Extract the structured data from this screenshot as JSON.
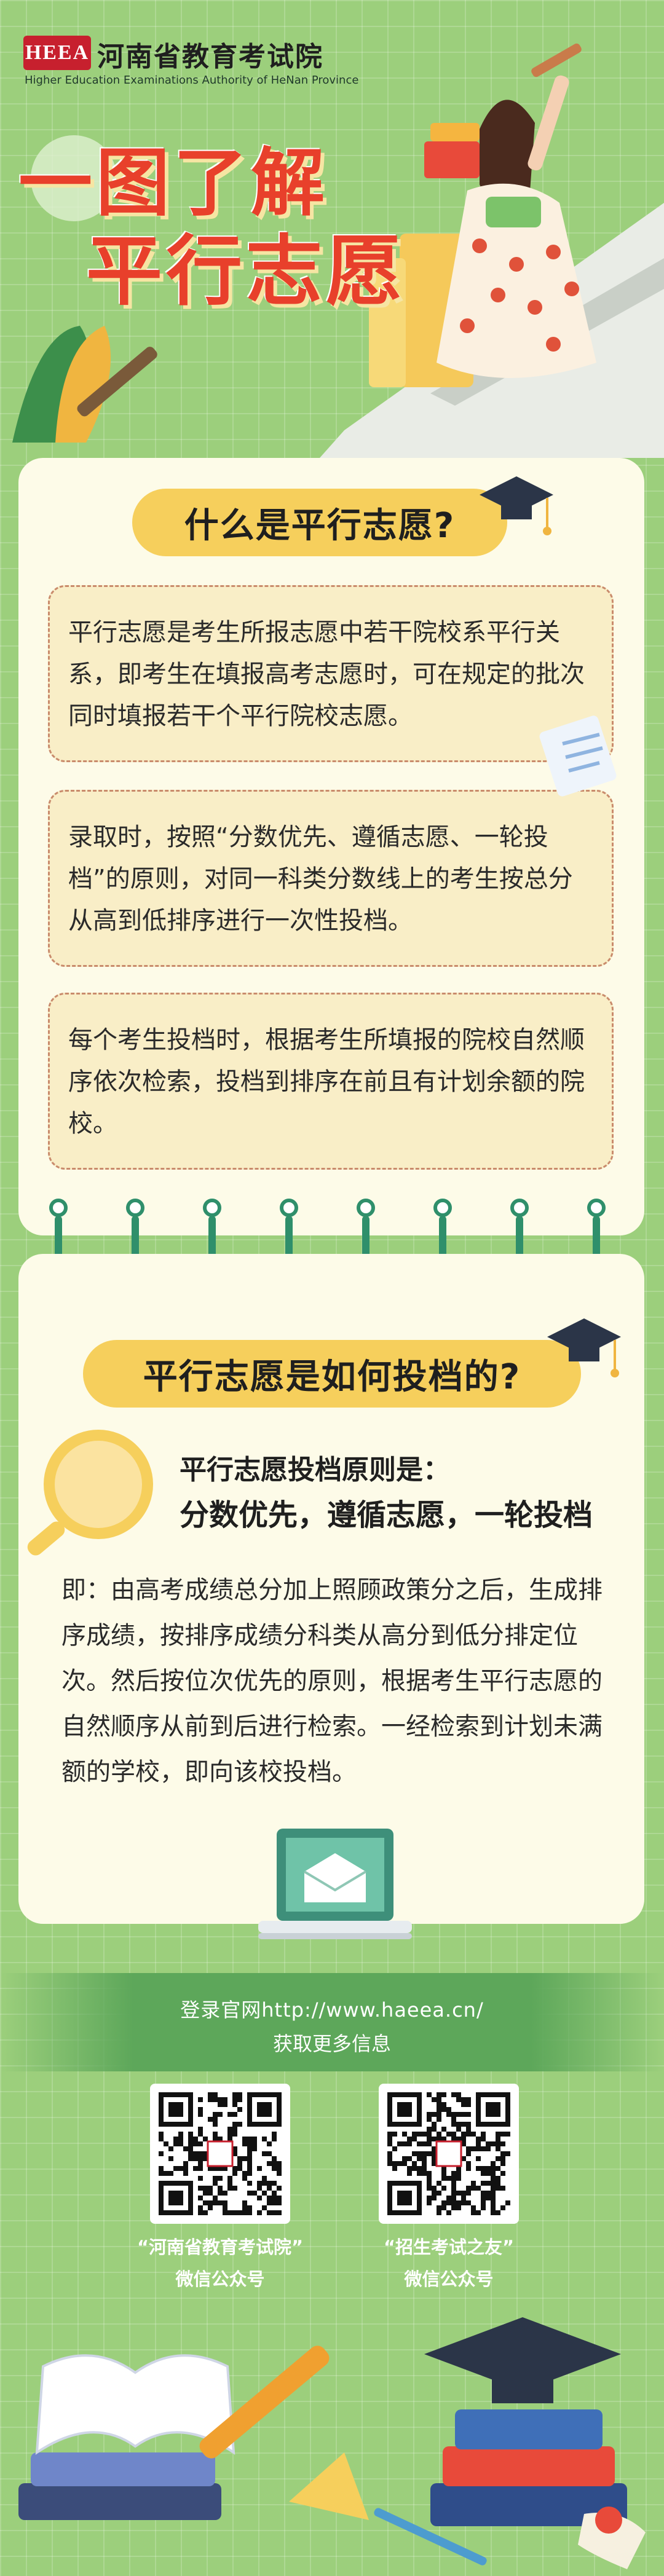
{
  "header": {
    "logo": "HEEA",
    "org_cn": "河南省教育考试院",
    "org_en": "Higher Education Examinations Authority of HeNan Province"
  },
  "title": {
    "line1": "一图了解",
    "line2": "平行志愿"
  },
  "section1": {
    "title": "什么是平行志愿?",
    "boxes": [
      "平行志愿是考生所报志愿中若干院校系平行关系，即考生在填报高考志愿时，可在规定的批次同时填报若干个平行院校志愿。",
      "录取时，按照“分数优先、遵循志愿、一轮投档”的原则，对同一科类分数线上的考生按总分从高到低排序进行一次性投档。",
      "每个考生投档时，根据考生所填报的院校自然顺序依次检索，投档到排序在前且有计划余额的院校。"
    ]
  },
  "section2": {
    "title": "平行志愿是如何投档的?",
    "principle_label": "平行志愿投档原则是：",
    "principle": "分数优先，遵循志愿，一轮投档",
    "body": "即：由高考成绩总分加上照顾政策分之后，生成排序成绩，按排序成绩分科类从高分到低分排定位次。然后按位次优先的原则，根据考生平行志愿的自然顺序从前到后进行检索。一经检索到计划未满额的学校，即向该校投档。"
  },
  "footer": {
    "site_line1": "登录官网http://www.haeea.cn/",
    "site_line2": "获取更多信息",
    "qr1_caption1": "“河南省教育考试院”",
    "qr1_caption2": "微信公众号",
    "qr2_caption1": "“招生考试之友”",
    "qr2_caption2": "微信公众号"
  },
  "colors": {
    "background": "#9ccf7c",
    "accent_red": "#e8402b",
    "title_yellow": "#f6cf5c",
    "card": "#fdfbe8",
    "ring_green": "#2f8f6b"
  }
}
